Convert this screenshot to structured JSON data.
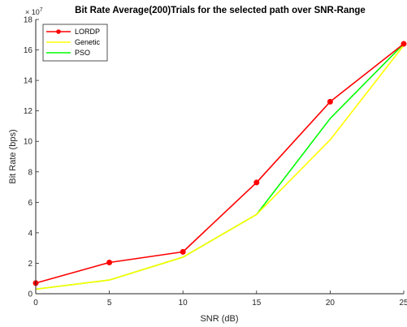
{
  "chart_data": {
    "type": "line",
    "title": "Bit Rate Average(200)Trials  for the selected path over SNR-Range",
    "xlabel": "SNR (dB)",
    "ylabel": "Bit Rate (bps)",
    "y_exponent_label": "× 10",
    "y_exponent_power": "7",
    "y_multiplier": 10000000,
    "xlim": [
      0,
      25
    ],
    "ylim": [
      0,
      18
    ],
    "xticks": [
      0,
      5,
      10,
      15,
      20,
      25
    ],
    "yticks": [
      0,
      2,
      4,
      6,
      8,
      10,
      12,
      14,
      16,
      18
    ],
    "grid": false,
    "legend_position": "top-left",
    "x": [
      0,
      5,
      10,
      15,
      20,
      25
    ],
    "series": [
      {
        "name": "LORDP",
        "color": "#ff0000",
        "marker": "circle",
        "values": [
          0.7,
          2.05,
          2.75,
          7.3,
          12.6,
          16.4
        ]
      },
      {
        "name": "Genetic",
        "color": "#ffff00",
        "marker": "none",
        "values": [
          0.3,
          0.9,
          2.4,
          5.2,
          10.1,
          16.3
        ]
      },
      {
        "name": "PSO",
        "color": "#00ff00",
        "marker": "none",
        "values": [
          0.3,
          0.9,
          2.4,
          5.2,
          11.5,
          16.4
        ]
      }
    ]
  }
}
